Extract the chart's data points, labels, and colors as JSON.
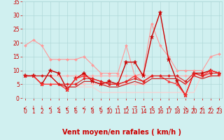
{
  "x": [
    0,
    1,
    2,
    3,
    4,
    5,
    6,
    7,
    8,
    9,
    10,
    11,
    12,
    13,
    14,
    15,
    16,
    17,
    18,
    19,
    20,
    21,
    22,
    23
  ],
  "series": [
    {
      "name": "rafales_light_high",
      "color": "#ff9999",
      "linewidth": 0.8,
      "marker": "D",
      "markersize": 2.0,
      "values": [
        19,
        21,
        19,
        14,
        14,
        14,
        14,
        15,
        12,
        9,
        9,
        9,
        19,
        8,
        9,
        27,
        19,
        15,
        10,
        10,
        10,
        10,
        15,
        16
      ]
    },
    {
      "name": "vent_moyen_light",
      "color": "#ffaaaa",
      "linewidth": 0.8,
      "marker": "D",
      "markersize": 2.0,
      "values": [
        8,
        8,
        8,
        8,
        8,
        8,
        8,
        8,
        8,
        8,
        8,
        8,
        8,
        8,
        8,
        8,
        8,
        8,
        8,
        8,
        8,
        8,
        8,
        8
      ]
    },
    {
      "name": "vent_moyen_light2",
      "color": "#ffbbbb",
      "linewidth": 0.8,
      "marker": "D",
      "markersize": 2.0,
      "values": [
        8,
        8,
        5,
        5,
        5,
        5,
        5,
        5,
        5,
        5,
        5,
        5,
        5,
        5,
        5,
        8,
        8,
        8,
        8,
        5,
        8,
        8,
        9,
        9
      ]
    },
    {
      "name": "base_step_light",
      "color": "#ffcccc",
      "linewidth": 0.8,
      "marker": null,
      "markersize": 0,
      "values": [
        8,
        8,
        8,
        8,
        5,
        4,
        4,
        4,
        4,
        2,
        2,
        2,
        2,
        2,
        2,
        2,
        2,
        2,
        2,
        2,
        2,
        9,
        9,
        9
      ]
    },
    {
      "name": "rafales_dark",
      "color": "#cc0000",
      "linewidth": 1.0,
      "marker": "*",
      "markersize": 4.5,
      "values": [
        8,
        8,
        5,
        10,
        9,
        3,
        7,
        9,
        6,
        5,
        6,
        5,
        13,
        13,
        8,
        22,
        31,
        14,
        6,
        1,
        9,
        9,
        10,
        9
      ]
    },
    {
      "name": "vent_moyen_dark",
      "color": "#ff3333",
      "linewidth": 0.9,
      "marker": "^",
      "markersize": 2.5,
      "values": [
        8,
        8,
        5,
        5,
        5,
        3,
        7,
        8,
        7,
        6,
        5,
        5,
        6,
        8,
        6,
        8,
        8,
        6,
        5,
        1,
        9,
        8,
        10,
        9
      ]
    },
    {
      "name": "base_dark",
      "color": "#dd2222",
      "linewidth": 0.8,
      "marker": "D",
      "markersize": 2.0,
      "values": [
        8,
        8,
        8,
        8,
        5,
        5,
        5,
        7,
        7,
        6,
        5,
        5,
        6,
        7,
        6,
        8,
        8,
        8,
        8,
        6,
        9,
        8,
        9,
        9
      ]
    },
    {
      "name": "step_dark",
      "color": "#cc1111",
      "linewidth": 0.8,
      "marker": null,
      "markersize": 0,
      "values": [
        8,
        8,
        8,
        8,
        5,
        4,
        4,
        6,
        6,
        5,
        4,
        4,
        5,
        6,
        5,
        7,
        7,
        7,
        7,
        5,
        8,
        7,
        8,
        8
      ]
    }
  ],
  "xlabel": "Vent moyen/en rafales ( km/h )",
  "xlim": [
    -0.3,
    23.3
  ],
  "ylim": [
    0,
    35
  ],
  "yticks": [
    0,
    5,
    10,
    15,
    20,
    25,
    30,
    35
  ],
  "xticks": [
    0,
    1,
    2,
    3,
    4,
    5,
    6,
    7,
    8,
    9,
    10,
    11,
    12,
    13,
    14,
    15,
    16,
    17,
    18,
    19,
    20,
    21,
    22,
    23
  ],
  "background_color": "#d0f0f0",
  "grid_color": "#b0d8d8",
  "label_color": "#cc0000",
  "tick_color": "#cc0000",
  "xlabel_fontsize": 7,
  "tick_fontsize": 5.5,
  "fig_width": 3.2,
  "fig_height": 2.0,
  "dpi": 100
}
